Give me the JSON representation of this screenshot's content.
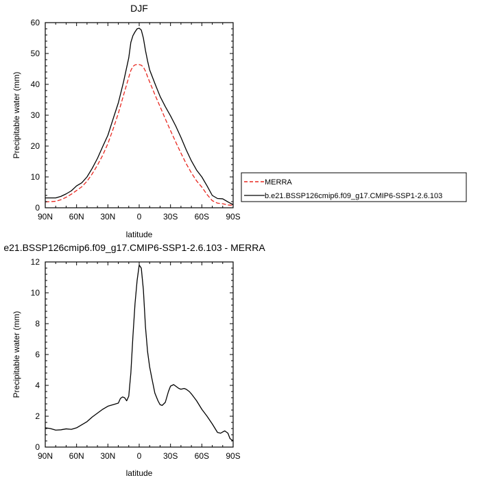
{
  "chart_data": [
    {
      "type": "line",
      "title": "DJF",
      "xlabel": "latitude",
      "ylabel": "Precipitable water (mm)",
      "xlim": [
        90,
        -90
      ],
      "ylim": [
        0,
        60
      ],
      "xticks": [
        90,
        60,
        30,
        0,
        -30,
        -60,
        -90
      ],
      "xtick_labels": [
        "90N",
        "60N",
        "30N",
        "0",
        "30S",
        "60S",
        "90S"
      ],
      "yticks": [
        0,
        10,
        20,
        30,
        40,
        50,
        60
      ],
      "legend_position": "right",
      "series": [
        {
          "name": "MERRA",
          "color": "#e8271f",
          "dash": "dashed",
          "x": [
            90,
            80,
            75,
            70,
            65,
            60,
            55,
            50,
            45,
            40,
            35,
            30,
            25,
            20,
            15,
            10,
            8,
            6,
            4,
            2,
            0,
            -2,
            -4,
            -6,
            -8,
            -10,
            -15,
            -20,
            -25,
            -30,
            -35,
            -40,
            -45,
            -50,
            -55,
            -60,
            -65,
            -70,
            -75,
            -80,
            -85,
            -90
          ],
          "y": [
            1.9,
            2.1,
            2.6,
            3.4,
            4.4,
            5.6,
            6.8,
            8.6,
            11.0,
            13.8,
            17.0,
            20.8,
            25.5,
            30.6,
            36.5,
            42.3,
            44.5,
            45.8,
            46.3,
            46.4,
            46.4,
            46.2,
            45.6,
            44.3,
            42.5,
            40.8,
            36.7,
            32.8,
            28.8,
            25.0,
            21.3,
            17.7,
            14.3,
            11.3,
            8.7,
            6.7,
            4.3,
            2.3,
            1.5,
            1.3,
            0.9,
            0.8
          ]
        },
        {
          "name": "b.e21.BSSP126cmip6.f09_g17.CMIP6-SSP1-2.6.103",
          "color": "#000000",
          "dash": "solid",
          "x": [
            90,
            80,
            75,
            70,
            65,
            60,
            55,
            50,
            45,
            40,
            35,
            30,
            25,
            20,
            15,
            10,
            8,
            6,
            4,
            2,
            0,
            -2,
            -4,
            -6,
            -8,
            -10,
            -15,
            -20,
            -25,
            -30,
            -35,
            -40,
            -45,
            -50,
            -55,
            -60,
            -65,
            -70,
            -75,
            -80,
            -85,
            -90
          ],
          "y": [
            3.2,
            3.2,
            3.7,
            4.5,
            5.5,
            7.1,
            8.1,
            10.0,
            12.8,
            16.0,
            19.8,
            23.5,
            28.8,
            34.0,
            40.8,
            48.6,
            53.6,
            55.8,
            57.0,
            58.0,
            58.2,
            57.6,
            55.0,
            51.0,
            47.6,
            44.7,
            40.3,
            36.1,
            32.8,
            29.8,
            26.5,
            22.8,
            18.8,
            15.2,
            12.2,
            10.0,
            7.1,
            4.0,
            3.0,
            2.9,
            1.9,
            1.0
          ]
        }
      ]
    },
    {
      "type": "line",
      "title": "e21.BSSP126cmip6.f09_g17.CMIP6-SSP1-2.6.103 - MERRA",
      "xlabel": "latitude",
      "ylabel": "Precipitable water (mm)",
      "xlim": [
        90,
        -90
      ],
      "ylim": [
        0,
        12
      ],
      "xticks": [
        90,
        60,
        30,
        0,
        -30,
        -60,
        -90
      ],
      "xtick_labels": [
        "90N",
        "60N",
        "30N",
        "0",
        "30S",
        "60S",
        "90S"
      ],
      "yticks": [
        0,
        2,
        4,
        6,
        8,
        10,
        12
      ],
      "series": [
        {
          "color": "#000000",
          "dash": "solid",
          "x": [
            90,
            85,
            80,
            75,
            70,
            65,
            60,
            55,
            50,
            45,
            40,
            35,
            30,
            25,
            20,
            18,
            16,
            14,
            12,
            10,
            8,
            6,
            4,
            2,
            0,
            -2,
            -4,
            -6,
            -8,
            -10,
            -12,
            -15,
            -18,
            -20,
            -22,
            -25,
            -28,
            -30,
            -33,
            -35,
            -38,
            -40,
            -43,
            -45,
            -48,
            -50,
            -55,
            -60,
            -65,
            -70,
            -75,
            -78,
            -80,
            -82,
            -85,
            -87,
            -90
          ],
          "y": [
            1.25,
            1.2,
            1.1,
            1.12,
            1.18,
            1.15,
            1.25,
            1.45,
            1.65,
            1.95,
            2.2,
            2.45,
            2.65,
            2.75,
            2.85,
            3.15,
            3.25,
            3.2,
            3.0,
            3.3,
            4.8,
            7.2,
            9.3,
            10.8,
            11.8,
            11.6,
            10.2,
            7.8,
            6.2,
            5.2,
            4.5,
            3.5,
            3.0,
            2.75,
            2.7,
            2.9,
            3.6,
            3.95,
            4.05,
            3.95,
            3.8,
            3.75,
            3.8,
            3.75,
            3.6,
            3.45,
            3.0,
            2.45,
            2.0,
            1.5,
            0.95,
            0.9,
            0.98,
            1.05,
            0.9,
            0.55,
            0.4
          ]
        }
      ]
    }
  ]
}
